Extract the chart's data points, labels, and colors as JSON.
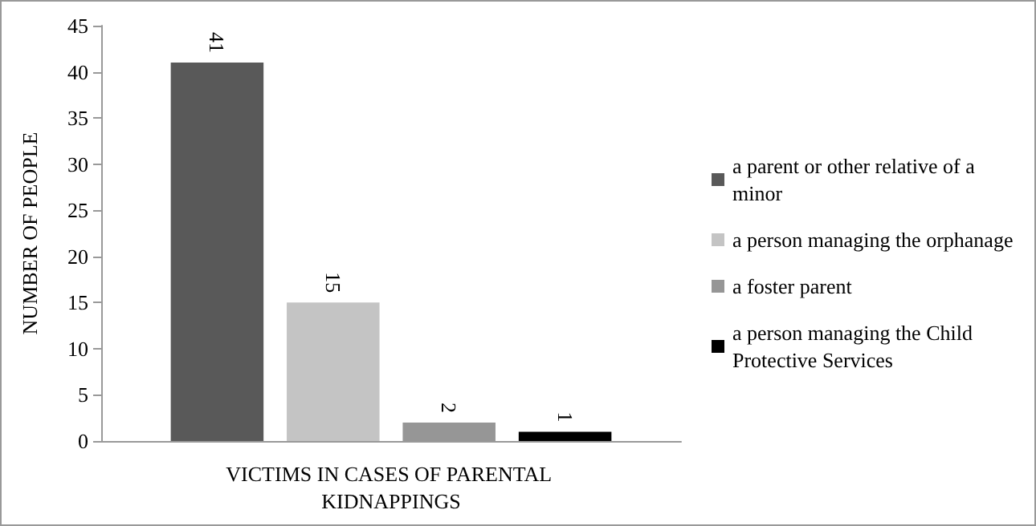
{
  "chart_data": {
    "type": "bar",
    "ylabel": "NUMBER OF PEOPLE",
    "categories": [
      "VICTIMS IN CASES OF PARENTAL KIDNAPPINGS"
    ],
    "series": [
      {
        "name": "a parent or other relative of a minor",
        "color": "#595959",
        "values": [
          41
        ]
      },
      {
        "name": "a person managing the orphanage",
        "color": "#c4c4c4",
        "values": [
          15
        ]
      },
      {
        "name": "a foster parent",
        "color": "#969696",
        "values": [
          2
        ]
      },
      {
        "name": "a person managing the Child Protective Services",
        "color": "#000000",
        "values": [
          1
        ]
      }
    ],
    "ylim": [
      0,
      45
    ],
    "yticks": [
      0,
      5,
      10,
      15,
      20,
      25,
      30,
      35,
      40,
      45
    ],
    "grid": false,
    "legend": "right",
    "data_labels": true
  }
}
